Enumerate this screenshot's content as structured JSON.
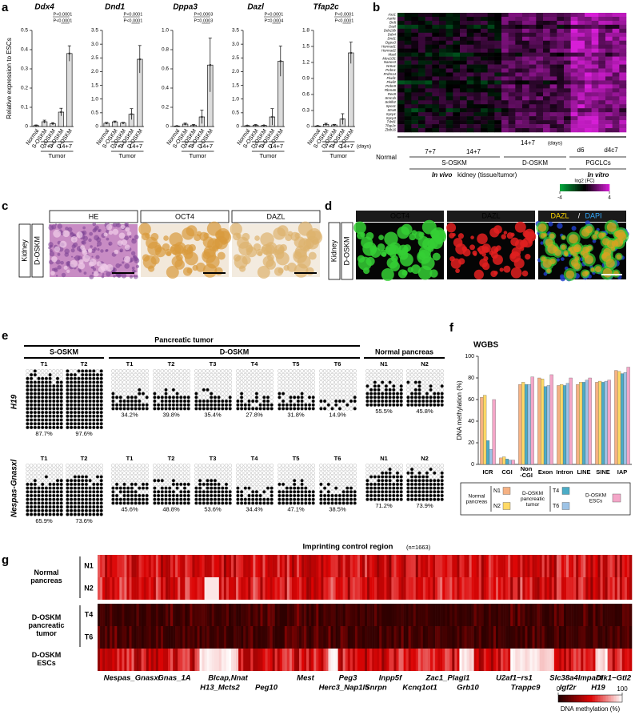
{
  "panel_labels": [
    "a",
    "b",
    "c",
    "d",
    "e",
    "f",
    "g"
  ],
  "chart_data": [
    {
      "type": "bar",
      "title": "Ddx4",
      "y_label": "Relative expression to ESCs",
      "categories": [
        "Normal",
        "S-OSKM",
        "D-OSKM",
        "S-OSKM",
        "D-OSKM"
      ],
      "values": [
        0.005,
        0.025,
        0.015,
        0.075,
        0.38
      ],
      "errors": [
        0.003,
        0.008,
        0.005,
        0.02,
        0.04
      ],
      "ylim": [
        0,
        0.5
      ],
      "yticks": [
        0,
        0.1,
        0.2,
        0.3,
        0.4,
        0.5
      ],
      "groups": [
        "7+7",
        "14+7"
      ],
      "group_title": "Tumor",
      "p_values": [
        "P<0.0001",
        "P<0.0001"
      ]
    },
    {
      "type": "bar",
      "title": "Dnd1",
      "categories": [
        "Normal",
        "S-OSKM",
        "D-OSKM",
        "S-OSKM",
        "D-OSKM"
      ],
      "values": [
        0.12,
        0.17,
        0.13,
        0.45,
        2.45
      ],
      "errors": [
        0.03,
        0.03,
        0.02,
        0.2,
        0.5
      ],
      "ylim": [
        0,
        3.5
      ],
      "yticks": [
        0,
        0.5,
        {
          "value": 1,
          "label": "1.0"
        },
        1.5,
        {
          "value": 2,
          "label": "2.0"
        },
        2.5,
        {
          "value": 3,
          "label": "3.0"
        },
        3.5
      ],
      "groups": [
        "7+7",
        "14+7"
      ],
      "group_title": "Tumor",
      "p_values": [
        "P<0.0001",
        "P<0.0001"
      ]
    },
    {
      "type": "bar",
      "title": "Dppa3",
      "categories": [
        "Normal",
        "S-OSKM",
        "D-OSKM",
        "S-OSKM",
        "D-OSKM"
      ],
      "values": [
        0.005,
        0.025,
        0.015,
        0.1,
        0.64
      ],
      "errors": [
        0.002,
        0.01,
        0.005,
        0.07,
        0.28
      ],
      "ylim": [
        0,
        1
      ],
      "yticks": [
        0,
        0.2,
        0.4,
        0.6,
        0.8,
        {
          "value": 1,
          "label": "1.0"
        }
      ],
      "groups": [
        "7+7",
        "14+7"
      ],
      "group_title": "Tumor",
      "p_values": [
        "P=0.0003",
        "P=0.0003"
      ]
    },
    {
      "type": "bar",
      "title": "Dazl",
      "categories": [
        "Normal",
        "S-OSKM",
        "D-OSKM",
        "S-OSKM",
        "D-OSKM"
      ],
      "values": [
        0.03,
        0.05,
        0.04,
        0.35,
        2.38
      ],
      "errors": [
        0.01,
        0.02,
        0.01,
        0.3,
        0.55
      ],
      "ylim": [
        0,
        3.5
      ],
      "yticks": [
        0,
        0.5,
        {
          "value": 1,
          "label": "1.0"
        },
        1.5,
        {
          "value": 2,
          "label": "2.0"
        },
        2.5,
        {
          "value": 3,
          "label": "3.0"
        },
        3.5
      ],
      "groups": [
        "7+7",
        "14+7"
      ],
      "group_title": "Tumor",
      "p_values": [
        "P<0.0001",
        "P=0.0004"
      ]
    },
    {
      "type": "bar",
      "title": "Tfap2c",
      "categories": [
        "Normal",
        "S-OSKM",
        "D-OSKM",
        "S-OSKM",
        "D-OSKM"
      ],
      "values": [
        0.01,
        0.04,
        0.03,
        0.14,
        1.38
      ],
      "errors": [
        0.005,
        0.02,
        0.01,
        0.1,
        0.2
      ],
      "ylim": [
        0,
        1.8
      ],
      "yticks": [
        0,
        0.3,
        0.6,
        0.9,
        1.2,
        1.5,
        1.8
      ],
      "groups": [
        "7+7",
        "14+7"
      ],
      "group_title": "Tumor",
      "days_label": "(days)",
      "p_values": [
        "P<0.0001",
        "P<0.0001"
      ]
    },
    {
      "type": "grouped-bar",
      "title": "WGBS",
      "y_label": "DNA methylation (%)",
      "categories": [
        "ICR",
        "CGI",
        "Non\n-CGI",
        "Exon",
        "Intron",
        "LINE",
        "SINE",
        "IAP"
      ],
      "series": [
        {
          "name": "N1",
          "color": "#f5b183",
          "values": [
            62,
            6,
            74,
            80,
            73,
            74,
            76,
            87
          ]
        },
        {
          "name": "N2",
          "color": "#ffd966",
          "values": [
            64,
            7,
            76,
            79,
            74,
            76,
            77,
            86
          ]
        },
        {
          "name": "T4",
          "color": "#4bacc6",
          "values": [
            22,
            5,
            74,
            72,
            73,
            76,
            76,
            84
          ]
        },
        {
          "name": "T6",
          "color": "#9dc3e6",
          "values": [
            14,
            4,
            74,
            73,
            75,
            78,
            77,
            85
          ]
        },
        {
          "name": "D-OSKM\nESCs",
          "color": "#f4a6c8",
          "values": [
            60,
            4,
            81,
            83,
            80,
            80,
            78,
            90
          ]
        }
      ],
      "legend_groups": [
        "Normal\npancreas",
        "D-OSKM\npancreatic\ntumor"
      ],
      "ylim": [
        0,
        100
      ],
      "yticks": [
        0,
        20,
        40,
        60,
        80,
        100
      ]
    }
  ],
  "panel_b": {
    "genes": [
      "Asz1",
      "Aurkc",
      "Brdt",
      "Dazl",
      "Ddx19b",
      "Ddx4",
      "Dnd1",
      "Dppa3",
      "Hormad1",
      "Hormad2",
      "Mael",
      "Mov10l1",
      "Nanos3",
      "Nr6a1",
      "Prdm1",
      "Prdm14",
      "Piwil1",
      "Piwil2",
      "Prdm9",
      "Rbm46",
      "Rec8",
      "Smc1b",
      "Sohlh2",
      "Spo11",
      "Stra8",
      "Sycp1",
      "Sycp3",
      "Tdrd1",
      "Tfap2c",
      "Zbtb16"
    ],
    "normal": "Normal",
    "days": [
      "7+7",
      "14+7",
      "14+7"
    ],
    "days_label": "(days)",
    "pgclc_days": [
      "d6",
      "d4c7"
    ],
    "groups": [
      "S-OSKM",
      "D-OSKM",
      "PGCLCs"
    ],
    "in_vivo": "In vivo",
    "in_vivo_text": "kidney (tissue/tumor)",
    "in_vitro": "In vitro",
    "colorbar": {
      "label": "log2 (FC)",
      "ticks": [
        -4,
        4
      ]
    }
  },
  "panel_c": {
    "stains": [
      "HE",
      "OCT4",
      "DAZL"
    ],
    "tissue": "Kidney",
    "model": "D-OSKM"
  },
  "panel_d": {
    "channels": [
      "OCT4",
      "DAZL"
    ],
    "merge": [
      "DAZL",
      "/",
      "DAPI"
    ],
    "tissue": "Kidney",
    "model": "D-OSKM"
  },
  "panel_e": {
    "title": "Pancreatic tumor",
    "groups": [
      "S-OSKM",
      "D-OSKM",
      "Normal pancreas"
    ],
    "rows": [
      {
        "label": "H19",
        "samples": [
          "T1",
          "T2",
          "T1",
          "T2",
          "T3",
          "T4",
          "T5",
          "T6",
          "N1",
          "N2"
        ],
        "values": [
          87.7,
          97.6,
          34.2,
          39.8,
          35.4,
          27.8,
          31.8,
          14.9,
          55.5,
          45.8
        ],
        "value_labels": [
          "87.7%",
          "97.6%",
          "34.2%",
          "39.8%",
          "35.4%",
          "27.8%",
          "31.8%",
          "14.9%",
          "55.5%",
          "45.8%"
        ]
      },
      {
        "label": "Nespas-Gnasxl",
        "samples": [
          "T1",
          "T2",
          "T1",
          "T2",
          "T3",
          "T4",
          "T5",
          "T6",
          "N1",
          "N2"
        ],
        "values": [
          65.9,
          73.6,
          45.6,
          48.8,
          53.6,
          34.4,
          47.1,
          38.5,
          71.2,
          73.9
        ],
        "value_labels": [
          "65.9%",
          "73.6%",
          "45.6%",
          "48.8%",
          "53.6%",
          "34.4%",
          "47.1%",
          "38.5%",
          "71.2%",
          "73.9%"
        ]
      }
    ]
  },
  "panel_g": {
    "title": "Imprinting control region",
    "n_label": "(n=1663)",
    "row_groups": [
      {
        "label": "Normal\npancreas",
        "rows": [
          "N1",
          "N2"
        ]
      },
      {
        "label": "D-OSKM\npancreatic\ntumor",
        "rows": [
          "T4",
          "T6"
        ]
      },
      {
        "label": "D-OSKM\nESCs",
        "rows": []
      }
    ],
    "genes_top": [
      "Nespas_Gnasxl",
      "Gnas_1A",
      "Blcap,Nnat",
      "Mest",
      "Peg3",
      "Inpp5f",
      "Zac1_Plagl1",
      "U2af1−rs1",
      "Slc38a4",
      "Impact",
      "Dlk1−Gtl2"
    ],
    "genes_bottom": [
      "H13_Mcts2",
      "Peg10",
      "Herc3_Nap1l5",
      "Snrpn",
      "Kcnq1ot1",
      "Grb10",
      "Trappc9",
      "Igf2r",
      "H19"
    ],
    "colorbar": {
      "label": "DNA methylation (%)",
      "ticks": [
        0,
        100
      ]
    }
  }
}
